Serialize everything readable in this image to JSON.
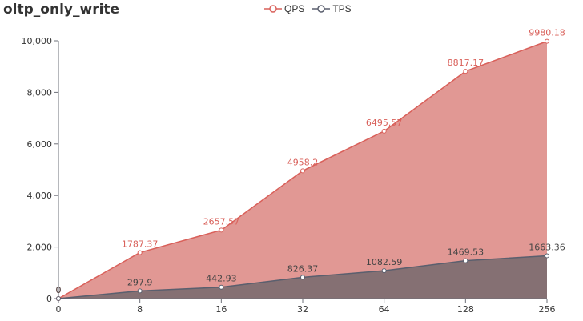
{
  "chart_data": {
    "type": "area",
    "title": "oltp_only_write",
    "categories": [
      "0",
      "8",
      "16",
      "32",
      "64",
      "128",
      "256"
    ],
    "series": [
      {
        "name": "QPS",
        "values": [
          0,
          1787.37,
          2657.57,
          4958.2,
          6495.57,
          8817.17,
          9980.18
        ],
        "labels": [
          "0",
          "1787.37",
          "2657.57",
          "4958.2",
          "6495.57",
          "8817.17",
          "9980.18"
        ]
      },
      {
        "name": "TPS",
        "values": [
          0,
          297.9,
          442.93,
          826.37,
          1082.59,
          1469.53,
          1663.36
        ],
        "labels": [
          "0",
          "297.9",
          "442.93",
          "826.37",
          "1082.59",
          "1469.53",
          "1663.36"
        ]
      }
    ],
    "yticks": [
      "0",
      "2,000",
      "4,000",
      "6,000",
      "8,000",
      "10,000"
    ],
    "ylim": [
      0,
      10000
    ],
    "grid": false,
    "legend_position": "top-center",
    "colors": {
      "QPS_line": "#d9605a",
      "QPS_fill": "#e19894",
      "TPS_line": "#5a5f6e",
      "TPS_fill": "#857073"
    }
  }
}
